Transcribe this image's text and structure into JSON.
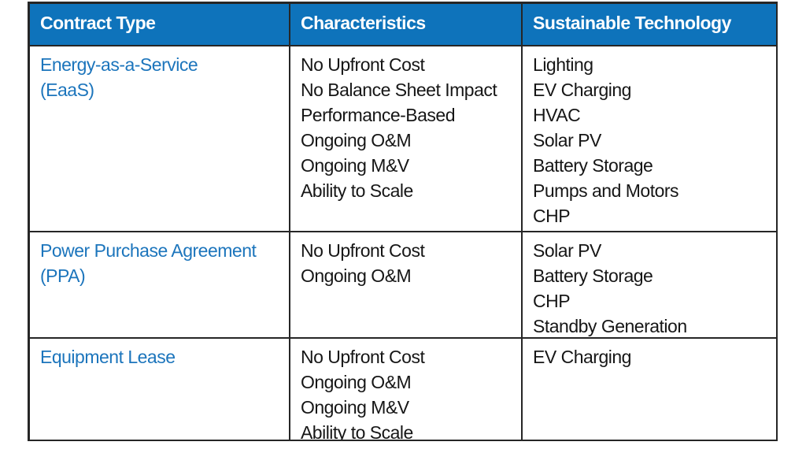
{
  "colors": {
    "header_bg": "#0E73BB",
    "header_text": "#FFFFFF",
    "contract_type_text": "#1C75BC",
    "body_text": "#161616",
    "border": "#262626",
    "page_bg": "#FFFFFF"
  },
  "table": {
    "headers": [
      "Contract Type",
      "Characteristics",
      "Sustainable Technology"
    ],
    "rows": [
      {
        "contract_type_lines": [
          "Energy-as-a-Service",
          "(EaaS)"
        ],
        "characteristics": [
          "No Upfront Cost",
          "No Balance Sheet Impact",
          "Performance-Based",
          "Ongoing O&M",
          "Ongoing M&V",
          "Ability to Scale"
        ],
        "technologies": [
          "Lighting",
          "EV Charging",
          "HVAC",
          "Solar PV",
          "Battery Storage",
          "Pumps and Motors",
          "CHP"
        ]
      },
      {
        "contract_type_lines": [
          "Power Purchase Agreement",
          "(PPA)"
        ],
        "characteristics": [
          "No Upfront Cost",
          "Ongoing O&M"
        ],
        "technologies": [
          "Solar PV",
          "Battery Storage",
          "CHP",
          "Standby Generation"
        ]
      },
      {
        "contract_type_lines": [
          "Equipment Lease"
        ],
        "characteristics": [
          "No Upfront Cost",
          "Ongoing O&M",
          "Ongoing M&V",
          "Ability to Scale"
        ],
        "technologies": [
          "EV Charging"
        ]
      }
    ]
  }
}
